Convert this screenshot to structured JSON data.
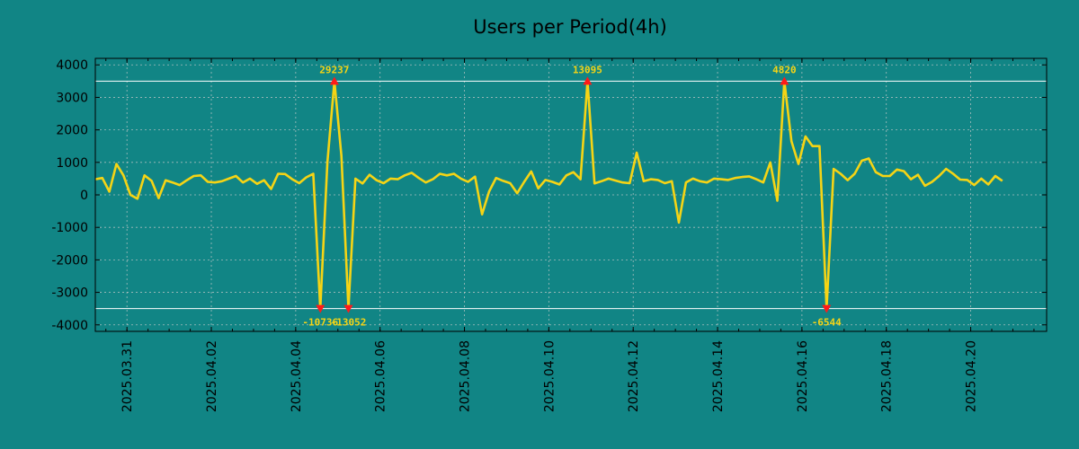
{
  "chart_data": {
    "type": "line",
    "title": "Users per Period(4h)",
    "xlabel": "",
    "ylabel": "",
    "x_range_days": [
      -0.75,
      21.8
    ],
    "ylim": [
      -4200,
      4200
    ],
    "y_ticks": [
      4000,
      3000,
      2000,
      1000,
      0,
      -1000,
      -2000,
      -3000,
      -4000
    ],
    "y_tick_labels": [
      "4000",
      "3000",
      "2000",
      "1000",
      "0",
      "-1000",
      "-2000",
      "-3000",
      "-4000"
    ],
    "x_ticks_days": [
      0,
      2,
      4,
      6,
      8,
      10,
      12,
      14,
      16,
      18,
      20
    ],
    "x_tick_labels": [
      "2025.03.31",
      "2025.04.02",
      "2025.04.04",
      "2025.04.06",
      "2025.04.08",
      "2025.04.10",
      "2025.04.12",
      "2025.04.14",
      "2025.04.16",
      "2025.04.18",
      "2025.04.20"
    ],
    "x_step_days": 0.16667,
    "x_start_day": -0.75,
    "clip_upper": 3500,
    "clip_lower": -3500,
    "series": [
      {
        "name": "Users",
        "color": "#f5d415",
        "values": [
          480,
          520,
          100,
          950,
          600,
          0,
          -120,
          600,
          430,
          -100,
          450,
          380,
          300,
          450,
          580,
          600,
          400,
          380,
          420,
          500,
          580,
          380,
          500,
          340,
          450,
          180,
          650,
          640,
          480,
          360,
          540,
          650,
          -3500,
          1000,
          3500,
          1200,
          -3500,
          500,
          350,
          620,
          450,
          360,
          500,
          480,
          600,
          680,
          520,
          380,
          480,
          650,
          600,
          650,
          500,
          400,
          560,
          -600,
          100,
          520,
          430,
          360,
          50,
          400,
          720,
          200,
          460,
          400,
          320,
          600,
          700,
          480,
          3500,
          350,
          420,
          500,
          440,
          380,
          360,
          1300,
          420,
          480,
          460,
          360,
          420,
          -850,
          380,
          500,
          420,
          380,
          500,
          480,
          460,
          520,
          550,
          570,
          480,
          380,
          1000,
          -180,
          3500,
          1650,
          950,
          1800,
          1500,
          1500,
          -3500,
          800,
          650,
          450,
          650,
          1050,
          1120,
          700,
          580,
          580,
          780,
          730,
          480,
          620,
          280,
          400,
          580,
          800,
          650,
          470,
          460,
          300,
          500,
          320,
          580,
          430
        ]
      }
    ],
    "limit_lines": [
      3500,
      -3500
    ],
    "annotations": [
      {
        "label": "29237",
        "index": 34,
        "position": "above"
      },
      {
        "label": "13095",
        "index": 70,
        "position": "above"
      },
      {
        "label": "4820",
        "index": 98,
        "position": "above"
      },
      {
        "label": "-10736",
        "index": 32,
        "position": "below"
      },
      {
        "label": "-13052",
        "index": 36,
        "position": "below"
      },
      {
        "label": "-6544",
        "index": 104,
        "position": "below"
      }
    ],
    "grid": true,
    "colors": {
      "background": "#118585",
      "plot_background": "#118585",
      "line": "#f5d415",
      "grid": "#cccccc",
      "limit_line": "#ffffff",
      "marker": "#ff1a1a",
      "annotation_text": "#f5d415"
    }
  }
}
